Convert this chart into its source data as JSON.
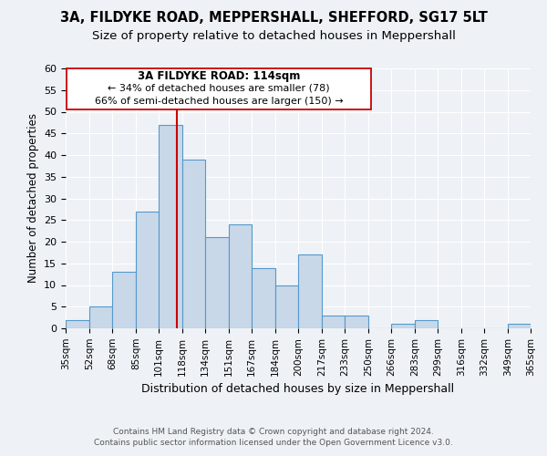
{
  "title1": "3A, FILDYKE ROAD, MEPPERSHALL, SHEFFORD, SG17 5LT",
  "title2": "Size of property relative to detached houses in Meppershall",
  "xlabel": "Distribution of detached houses by size in Meppershall",
  "ylabel": "Number of detached properties",
  "bin_edges": [
    35,
    52,
    68,
    85,
    101,
    118,
    134,
    151,
    167,
    184,
    200,
    217,
    233,
    250,
    266,
    283,
    299,
    316,
    332,
    349,
    365
  ],
  "bin_counts": [
    2,
    5,
    13,
    27,
    47,
    39,
    21,
    24,
    14,
    10,
    17,
    3,
    3,
    0,
    1,
    2,
    0,
    0,
    0,
    1
  ],
  "bar_color": "#c8d8e8",
  "bar_edge_color": "#5599cc",
  "vline_x": 114,
  "vline_color": "#cc0000",
  "ylim": [
    0,
    60
  ],
  "yticks": [
    0,
    5,
    10,
    15,
    20,
    25,
    30,
    35,
    40,
    45,
    50,
    55,
    60
  ],
  "xtick_labels": [
    "35sqm",
    "52sqm",
    "68sqm",
    "85sqm",
    "101sqm",
    "118sqm",
    "134sqm",
    "151sqm",
    "167sqm",
    "184sqm",
    "200sqm",
    "217sqm",
    "233sqm",
    "250sqm",
    "266sqm",
    "283sqm",
    "299sqm",
    "316sqm",
    "332sqm",
    "349sqm",
    "365sqm"
  ],
  "annotation_title": "3A FILDYKE ROAD: 114sqm",
  "annotation_line1": "← 34% of detached houses are smaller (78)",
  "annotation_line2": "66% of semi-detached houses are larger (150) →",
  "footer1": "Contains HM Land Registry data © Crown copyright and database right 2024.",
  "footer2": "Contains public sector information licensed under the Open Government Licence v3.0.",
  "background_color": "#eef2f6",
  "grid_color": "#ffffff",
  "title1_fontsize": 10.5,
  "title2_fontsize": 9.5,
  "xlabel_fontsize": 9,
  "ylabel_fontsize": 8.5
}
